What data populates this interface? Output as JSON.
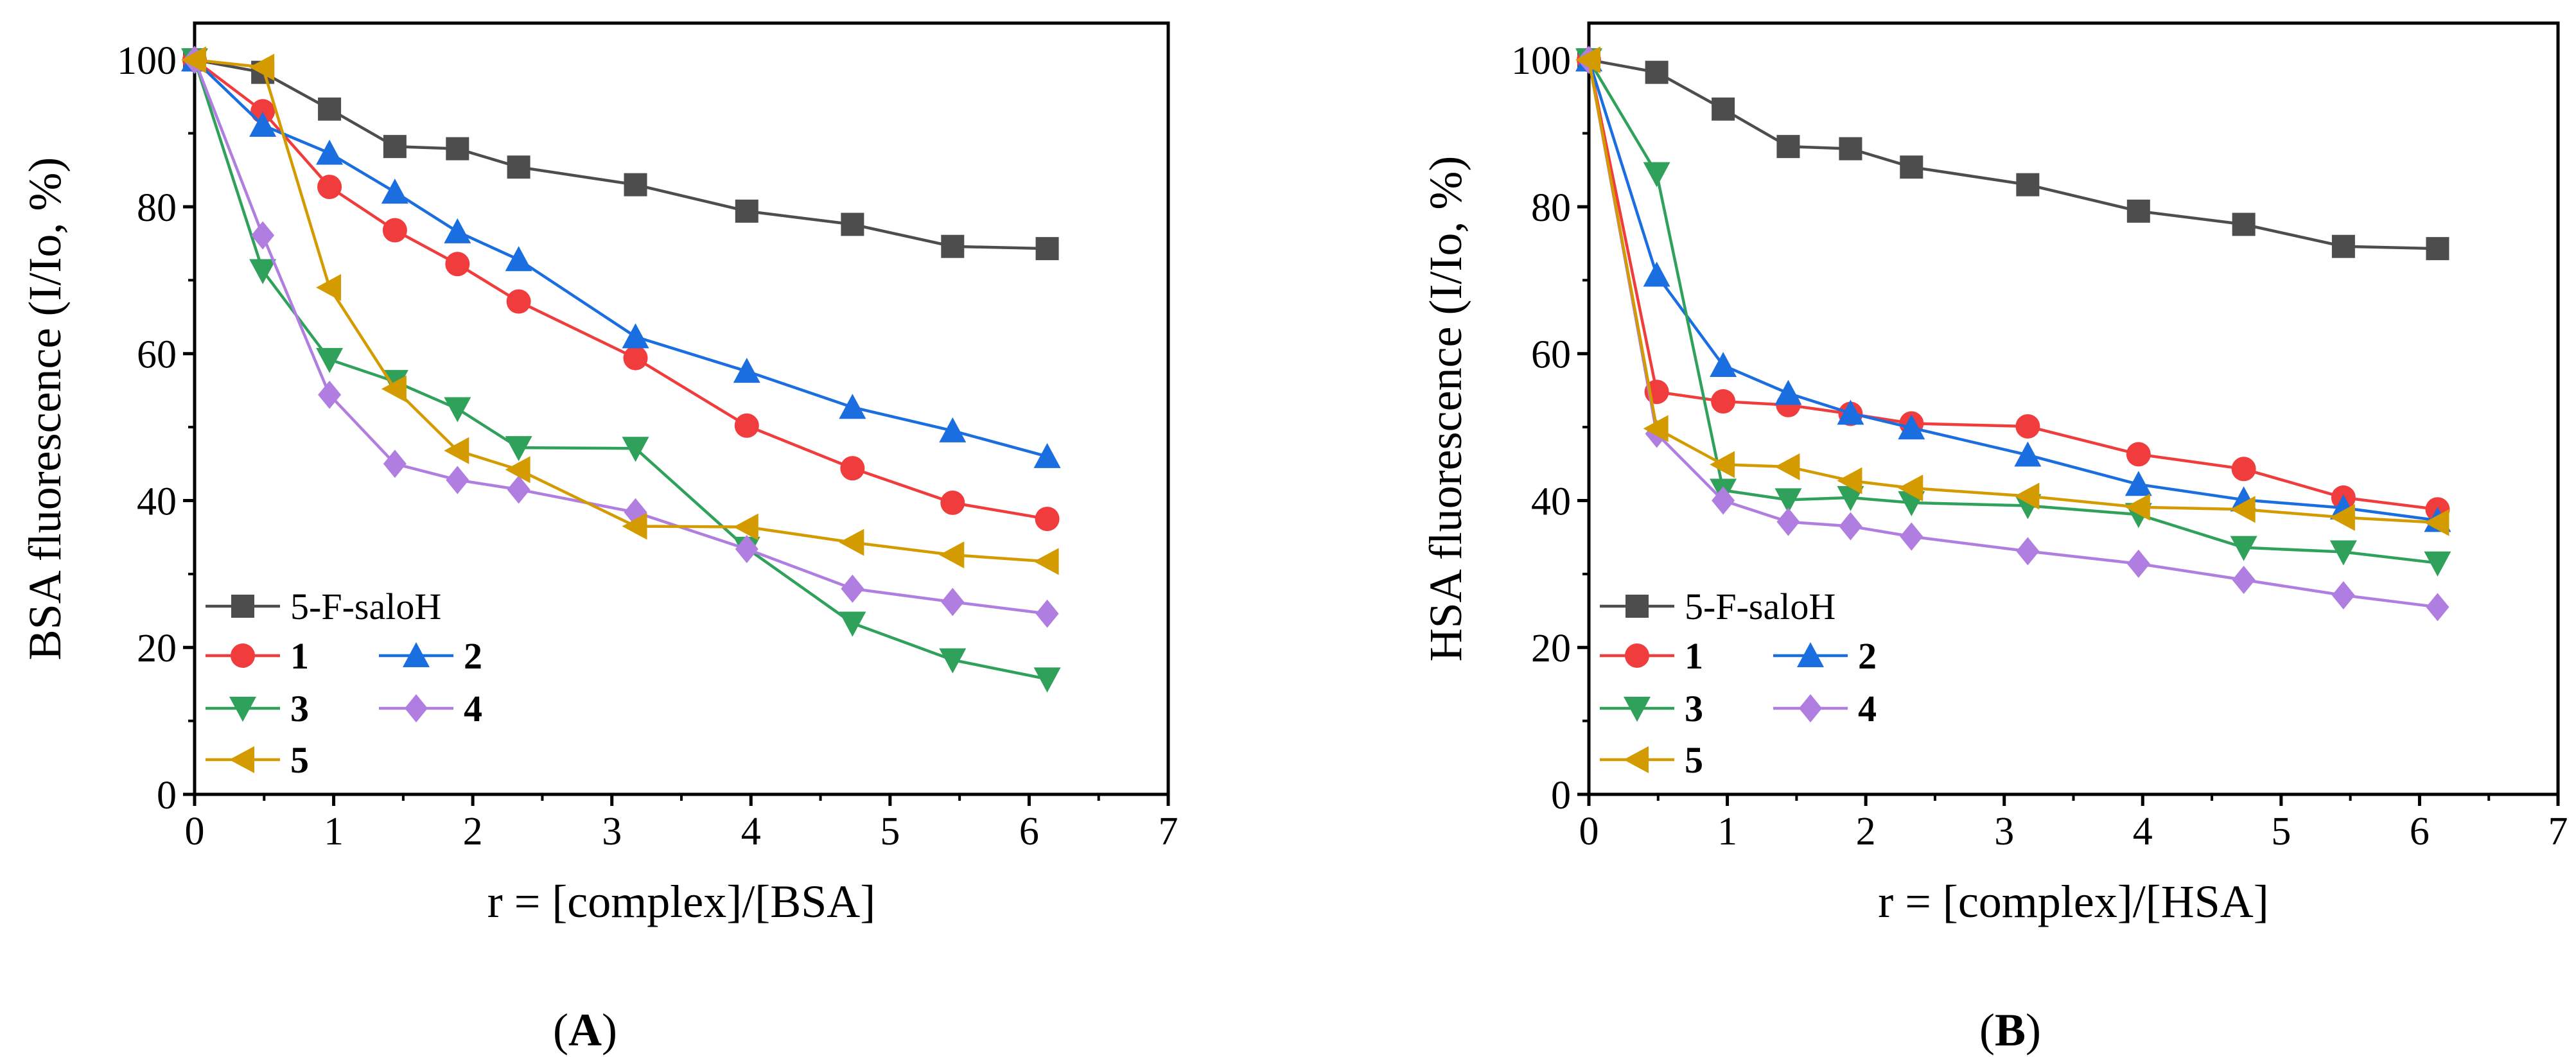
{
  "colors": {
    "5-F-saloH": "#4d4d4d",
    "1": "#f03c3c",
    "2": "#1a6ee0",
    "3": "#2fa15b",
    "4": "#b07ee0",
    "5": "#d39b00"
  },
  "chart_data": [
    {
      "type": "line",
      "panel_label": "A",
      "xlabel": "r = [complex]/[BSA]",
      "ylabel": "BSA fluorescence (I/Io, %)",
      "xlim": [
        0,
        7
      ],
      "ylim": [
        0,
        105
      ],
      "xticks": [
        0,
        1,
        2,
        3,
        4,
        5,
        6,
        7
      ],
      "yticks": [
        0,
        20,
        40,
        60,
        80,
        100
      ],
      "legend_position": "bottom-left",
      "x": [
        0,
        0.49,
        0.97,
        1.44,
        1.89,
        2.33,
        3.17,
        3.97,
        4.73,
        5.45,
        6.13
      ],
      "series": [
        {
          "name": "5-F-saloH",
          "marker": "square",
          "values": [
            100,
            98.3,
            93.3,
            88.2,
            87.9,
            85.4,
            83.0,
            79.4,
            77.6,
            74.6,
            74.3
          ]
        },
        {
          "name": "1",
          "marker": "circle",
          "values": [
            100,
            93.0,
            82.7,
            76.8,
            72.2,
            67.1,
            59.4,
            50.2,
            44.4,
            39.7,
            37.5
          ]
        },
        {
          "name": "2",
          "marker": "triangle-up",
          "values": [
            100,
            91.1,
            87.3,
            82.0,
            76.6,
            72.8,
            62.3,
            57.6,
            52.7,
            49.5,
            46.0
          ]
        },
        {
          "name": "3",
          "marker": "triangle-down",
          "values": [
            100,
            71.3,
            59.2,
            56.2,
            52.5,
            47.2,
            47.1,
            33.5,
            23.3,
            18.3,
            15.7
          ]
        },
        {
          "name": "4",
          "marker": "diamond",
          "values": [
            100,
            76.1,
            54.4,
            45.0,
            42.8,
            41.5,
            38.4,
            33.4,
            28.0,
            26.2,
            24.6
          ]
        },
        {
          "name": "5",
          "marker": "triangle-left",
          "values": [
            100,
            99.0,
            69.0,
            55.2,
            46.8,
            44.2,
            36.5,
            36.4,
            34.3,
            32.6,
            31.7
          ]
        }
      ]
    },
    {
      "type": "line",
      "panel_label": "B",
      "xlabel": "r = [complex]/[HSA]",
      "ylabel": "HSA fluorescence (I/Io, %)",
      "xlim": [
        0,
        7
      ],
      "ylim": [
        0,
        105
      ],
      "xticks": [
        0,
        1,
        2,
        3,
        4,
        5,
        6,
        7
      ],
      "yticks": [
        0,
        20,
        40,
        60,
        80,
        100
      ],
      "legend_position": "bottom-left",
      "x": [
        0,
        0.49,
        0.97,
        1.44,
        1.89,
        2.33,
        3.17,
        3.97,
        4.73,
        5.45,
        6.13
      ],
      "series": [
        {
          "name": "5-F-saloH",
          "marker": "square",
          "values": [
            100,
            98.3,
            93.3,
            88.2,
            87.9,
            85.4,
            83.0,
            79.4,
            77.6,
            74.6,
            74.3
          ]
        },
        {
          "name": "1",
          "marker": "circle",
          "values": [
            100,
            54.8,
            53.5,
            53.0,
            51.8,
            50.5,
            50.1,
            46.3,
            44.3,
            40.4,
            38.8
          ]
        },
        {
          "name": "2",
          "marker": "triangle-up",
          "values": [
            100,
            70.7,
            58.4,
            54.6,
            51.9,
            49.9,
            46.2,
            42.2,
            40.1,
            39.0,
            37.3
          ]
        },
        {
          "name": "3",
          "marker": "triangle-down",
          "values": [
            100,
            84.5,
            41.4,
            40.1,
            40.4,
            39.7,
            39.3,
            38.1,
            33.6,
            33.0,
            31.5
          ]
        },
        {
          "name": "4",
          "marker": "diamond",
          "values": [
            100,
            49.1,
            40.0,
            37.1,
            36.5,
            35.1,
            33.1,
            31.4,
            29.2,
            27.1,
            25.5
          ]
        },
        {
          "name": "5",
          "marker": "triangle-left",
          "values": [
            100,
            49.8,
            44.9,
            44.6,
            42.7,
            41.7,
            40.6,
            39.1,
            38.8,
            37.7,
            37.0
          ]
        }
      ]
    }
  ]
}
